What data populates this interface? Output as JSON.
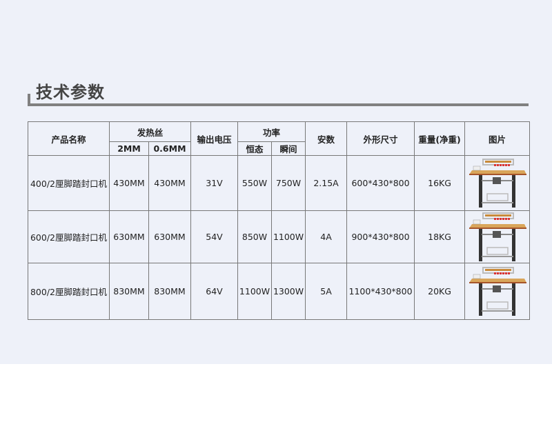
{
  "title": "技术参数",
  "headers": {
    "name": "产品名称",
    "wire": "发热丝",
    "wire_2mm": "2MM",
    "wire_06mm": "0.6MM",
    "voltage": "输出电压",
    "power": "功率",
    "power_constant": "恒态",
    "power_instant": "瞬间",
    "current": "安数",
    "size": "外形尺寸",
    "weight": "重量(净重)",
    "image": "图片"
  },
  "rows": [
    {
      "name": "400/2厘脚踏封口机",
      "wire_2mm": "430MM",
      "wire_06mm": "430MM",
      "voltage": "31V",
      "power_constant": "550W",
      "power_instant": "750W",
      "current": "2.15A",
      "size": "600*430*800",
      "weight": "16KG"
    },
    {
      "name": "600/2厘脚踏封口机",
      "wire_2mm": "630MM",
      "wire_06mm": "630MM",
      "voltage": "54V",
      "power_constant": "850W",
      "power_instant": "1100W",
      "current": "4A",
      "size": "900*430*800",
      "weight": "18KG"
    },
    {
      "name": "800/2厘脚踏封口机",
      "wire_2mm": "830MM",
      "wire_06mm": "830MM",
      "voltage": "64V",
      "power_constant": "1100W",
      "power_instant": "1300W",
      "current": "5A",
      "size": "1100*430*800",
      "weight": "20KG"
    }
  ]
}
